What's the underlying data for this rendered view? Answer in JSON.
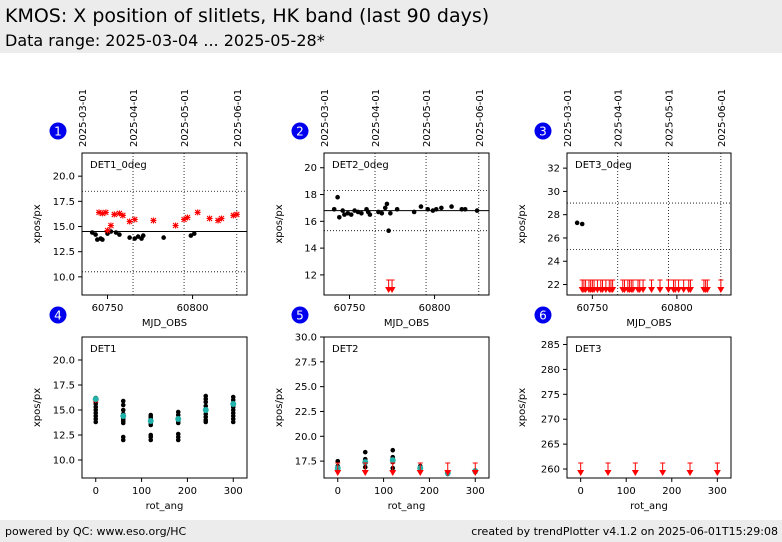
{
  "header": {
    "title": "KMOS: X position of slitlets, HK band (last 90 days)",
    "subtitle": "Data range: 2025-03-04 ... 2025-05-28*"
  },
  "footer": {
    "left": "powered by QC: www.eso.org/HC",
    "right": "created by trendPlotter v4.1.2 on 2025-06-01T15:29:08"
  },
  "colors": {
    "header_bg": "#ececec",
    "number_badge": "#0000ee",
    "upper": "#ff0000",
    "outlier_marker": "#ff0000",
    "mean_marker": "#20b2aa",
    "data": "#000000"
  },
  "chart_data": [
    {
      "panel": "1",
      "type": "scatter",
      "label": "DET1_0deg",
      "xlabel": "MJD_OBS",
      "ylabel": "xpos/px",
      "xlim": [
        60735,
        60832
      ],
      "ylim": [
        8.2,
        22.3
      ],
      "xticks": [
        60750,
        60800
      ],
      "yticks": [
        10.0,
        12.5,
        15.0,
        17.5,
        20.0
      ],
      "ytick_labels": [
        "10.0",
        "12.5",
        "15.0",
        "17.5",
        "20.0"
      ],
      "date_ticks": [
        {
          "mjd": 60735,
          "label": "2025-03-01"
        },
        {
          "mjd": 60765,
          "label": "2025-04-01"
        },
        {
          "mjd": 60795,
          "label": "2025-05-01"
        },
        {
          "mjd": 60826,
          "label": "2025-06-01"
        }
      ],
      "ref_line": 14.5,
      "limit_lines": [
        10.5,
        18.5
      ],
      "points": [
        [
          60741,
          14.4
        ],
        [
          60743,
          14.2
        ],
        [
          60744,
          13.7
        ],
        [
          60746,
          13.8
        ],
        [
          60747,
          13.7
        ],
        [
          60750,
          14.3
        ],
        [
          60752,
          14.5
        ],
        [
          60755,
          14.4
        ],
        [
          60757,
          14.2
        ],
        [
          60763,
          13.9
        ],
        [
          60766,
          13.8
        ],
        [
          60768,
          14.0
        ],
        [
          60770,
          13.8
        ],
        [
          60771,
          14.1
        ],
        [
          60783,
          13.9
        ],
        [
          60799,
          14.1
        ],
        [
          60801,
          14.3
        ]
      ],
      "outliers": [
        [
          60745,
          16.4
        ],
        [
          60747,
          16.3
        ],
        [
          60749,
          16.4
        ],
        [
          60750,
          14.6
        ],
        [
          60752,
          15.1
        ],
        [
          60754,
          16.2
        ],
        [
          60757,
          16.3
        ],
        [
          60759,
          16.1
        ],
        [
          60763,
          15.5
        ],
        [
          60766,
          15.7
        ],
        [
          60777,
          15.6
        ],
        [
          60790,
          15.1
        ],
        [
          60795,
          15.7
        ],
        [
          60797,
          15.9
        ],
        [
          60803,
          16.4
        ],
        [
          60810,
          15.8
        ],
        [
          60815,
          15.6
        ],
        [
          60817,
          15.8
        ],
        [
          60824,
          16.1
        ],
        [
          60826,
          16.2
        ]
      ],
      "upper_limits": []
    },
    {
      "panel": "2",
      "type": "scatter",
      "label": "DET2_0deg",
      "xlabel": "MJD_OBS",
      "ylabel": "xpos/px",
      "xlim": [
        60735,
        60832
      ],
      "ylim": [
        10.5,
        21.1
      ],
      "xticks": [
        60750,
        60800
      ],
      "yticks": [
        12,
        14,
        16,
        18,
        20
      ],
      "ytick_labels": [
        "12",
        "14",
        "16",
        "18",
        "20"
      ],
      "date_ticks": [
        {
          "mjd": 60735,
          "label": "2025-03-01"
        },
        {
          "mjd": 60765,
          "label": "2025-04-01"
        },
        {
          "mjd": 60795,
          "label": "2025-05-01"
        },
        {
          "mjd": 60826,
          "label": "2025-06-01"
        }
      ],
      "ref_line": 16.8,
      "limit_lines": [
        15.3,
        18.3
      ],
      "points": [
        [
          60741,
          16.9
        ],
        [
          60743,
          17.8
        ],
        [
          60744,
          16.3
        ],
        [
          60746,
          16.8
        ],
        [
          60747,
          16.5
        ],
        [
          60749,
          16.6
        ],
        [
          60751,
          16.5
        ],
        [
          60753,
          16.8
        ],
        [
          60755,
          16.7
        ],
        [
          60757,
          16.6
        ],
        [
          60760,
          16.9
        ],
        [
          60761,
          16.7
        ],
        [
          60762,
          16.5
        ],
        [
          60767,
          16.7
        ],
        [
          60769,
          16.6
        ],
        [
          60771,
          17.0
        ],
        [
          60772,
          17.3
        ],
        [
          60773,
          15.3
        ],
        [
          60774,
          16.6
        ],
        [
          60778,
          16.9
        ],
        [
          60788,
          16.7
        ],
        [
          60792,
          17.1
        ],
        [
          60796,
          16.9
        ],
        [
          60799,
          16.8
        ],
        [
          60801,
          16.9
        ],
        [
          60804,
          17.0
        ],
        [
          60810,
          17.1
        ],
        [
          60816,
          16.9
        ],
        [
          60818,
          16.9
        ],
        [
          60825,
          16.8
        ]
      ],
      "outliers": [],
      "upper_limits": [
        60773,
        60775
      ]
    },
    {
      "panel": "3",
      "type": "scatter",
      "label": "DET3_0deg",
      "xlabel": "MJD_OBS",
      "ylabel": "xpos/px",
      "xlim": [
        60735,
        60832
      ],
      "ylim": [
        21.1,
        33.3
      ],
      "xticks": [
        60750,
        60800
      ],
      "yticks": [
        22,
        24,
        26,
        28,
        30,
        32
      ],
      "ytick_labels": [
        "22",
        "24",
        "26",
        "28",
        "30",
        "32"
      ],
      "date_ticks": [
        {
          "mjd": 60735,
          "label": "2025-03-01"
        },
        {
          "mjd": 60765,
          "label": "2025-04-01"
        },
        {
          "mjd": 60795,
          "label": "2025-05-01"
        },
        {
          "mjd": 60826,
          "label": "2025-06-01"
        }
      ],
      "ref_line": null,
      "limit_lines": [
        25,
        29
      ],
      "points": [
        [
          60741,
          27.3
        ],
        [
          60744,
          27.2
        ]
      ],
      "outliers": [],
      "upper_limits": [
        60744,
        60745,
        60746,
        60748,
        60749,
        60750,
        60751,
        60753,
        60755,
        60756,
        60758,
        60760,
        60761,
        60762,
        60768,
        60769,
        60771,
        60772,
        60773,
        60774,
        60777,
        60778,
        60780,
        60785,
        60790,
        60795,
        60798,
        60799,
        60801,
        60804,
        60807,
        60808,
        60816,
        60817,
        60818,
        60826
      ]
    },
    {
      "panel": "4",
      "type": "scatter",
      "label": "DET1",
      "xlabel": "rot_ang",
      "ylabel": "xpos/px",
      "xlim": [
        -30,
        330
      ],
      "ylim": [
        8.2,
        22.3
      ],
      "xticks": [
        0,
        100,
        200,
        300
      ],
      "yticks": [
        10.0,
        12.5,
        15.0,
        17.5,
        20.0
      ],
      "ytick_labels": [
        "10.0",
        "12.5",
        "15.0",
        "17.5",
        "20.0"
      ],
      "points": [
        [
          0,
          13.8
        ],
        [
          0,
          14.1
        ],
        [
          0,
          14.4
        ],
        [
          0,
          14.7
        ],
        [
          0,
          15.0
        ],
        [
          0,
          15.3
        ],
        [
          0,
          15.6
        ],
        [
          0,
          15.9
        ],
        [
          0,
          16.2
        ],
        [
          60,
          12.0
        ],
        [
          60,
          12.3
        ],
        [
          60,
          13.7
        ],
        [
          60,
          13.9
        ],
        [
          60,
          14.1
        ],
        [
          60,
          14.3
        ],
        [
          60,
          14.6
        ],
        [
          60,
          15.0
        ],
        [
          60,
          15.5
        ],
        [
          60,
          15.9
        ],
        [
          120,
          12.0
        ],
        [
          120,
          12.3
        ],
        [
          120,
          12.5
        ],
        [
          120,
          13.5
        ],
        [
          120,
          13.7
        ],
        [
          120,
          13.9
        ],
        [
          120,
          14.1
        ],
        [
          120,
          14.3
        ],
        [
          120,
          14.5
        ],
        [
          180,
          12.0
        ],
        [
          180,
          12.3
        ],
        [
          180,
          12.6
        ],
        [
          180,
          13.7
        ],
        [
          180,
          13.9
        ],
        [
          180,
          14.2
        ],
        [
          180,
          14.5
        ],
        [
          180,
          14.8
        ],
        [
          240,
          13.8
        ],
        [
          240,
          14.0
        ],
        [
          240,
          14.3
        ],
        [
          240,
          14.6
        ],
        [
          240,
          15.0
        ],
        [
          240,
          15.4
        ],
        [
          240,
          15.8
        ],
        [
          240,
          16.1
        ],
        [
          240,
          16.4
        ],
        [
          300,
          13.8
        ],
        [
          300,
          14.1
        ],
        [
          300,
          14.4
        ],
        [
          300,
          14.7
        ],
        [
          300,
          15.0
        ],
        [
          300,
          15.3
        ],
        [
          300,
          15.7
        ],
        [
          300,
          16.0
        ],
        [
          300,
          16.3
        ]
      ],
      "outliers": [
        [
          0,
          16.0
        ]
      ],
      "means": [
        [
          0,
          16.1
        ],
        [
          60,
          14.4
        ],
        [
          120,
          13.9
        ],
        [
          180,
          14.1
        ],
        [
          240,
          15.0
        ],
        [
          300,
          15.6
        ]
      ],
      "upper_limits": []
    },
    {
      "panel": "5",
      "type": "scatter",
      "label": "DET2",
      "xlabel": "rot_ang",
      "ylabel": "xpos/px",
      "xlim": [
        -30,
        330
      ],
      "ylim": [
        15.8,
        30.0
      ],
      "xticks": [
        0,
        100,
        200,
        300
      ],
      "yticks": [
        17.5,
        20.0,
        22.5,
        25.0,
        27.5,
        30.0
      ],
      "ytick_labels": [
        "17.5",
        "20.0",
        "22.5",
        "25.0",
        "27.5",
        "30.0"
      ],
      "points": [
        [
          0,
          16.5
        ],
        [
          0,
          17.0
        ],
        [
          0,
          17.5
        ],
        [
          60,
          16.9
        ],
        [
          60,
          17.3
        ],
        [
          60,
          17.7
        ],
        [
          60,
          18.4
        ],
        [
          120,
          16.8
        ],
        [
          120,
          17.4
        ],
        [
          120,
          17.9
        ],
        [
          120,
          18.6
        ],
        [
          180,
          16.5
        ],
        [
          180,
          17.0
        ],
        [
          240,
          16.2
        ],
        [
          300,
          16.4
        ]
      ],
      "outliers": [],
      "means": [
        [
          0,
          16.8
        ],
        [
          60,
          17.4
        ],
        [
          120,
          17.6
        ],
        [
          180,
          16.8
        ],
        [
          240,
          16.3
        ],
        [
          300,
          16.5
        ]
      ],
      "upper_limits": [
        0,
        60,
        120,
        180,
        240,
        300
      ]
    },
    {
      "panel": "6",
      "type": "scatter",
      "label": "DET3",
      "xlabel": "rot_ang",
      "ylabel": "xpos/px",
      "xlim": [
        -30,
        330
      ],
      "ylim": [
        258.2,
        286.5
      ],
      "xticks": [
        0,
        100,
        200,
        300
      ],
      "yticks": [
        260,
        265,
        270,
        275,
        280,
        285
      ],
      "ytick_labels": [
        "260",
        "265",
        "270",
        "275",
        "280",
        "285"
      ],
      "points": [],
      "outliers": [],
      "means": [],
      "upper_limits": [
        0,
        60,
        120,
        180,
        240,
        300
      ]
    }
  ]
}
